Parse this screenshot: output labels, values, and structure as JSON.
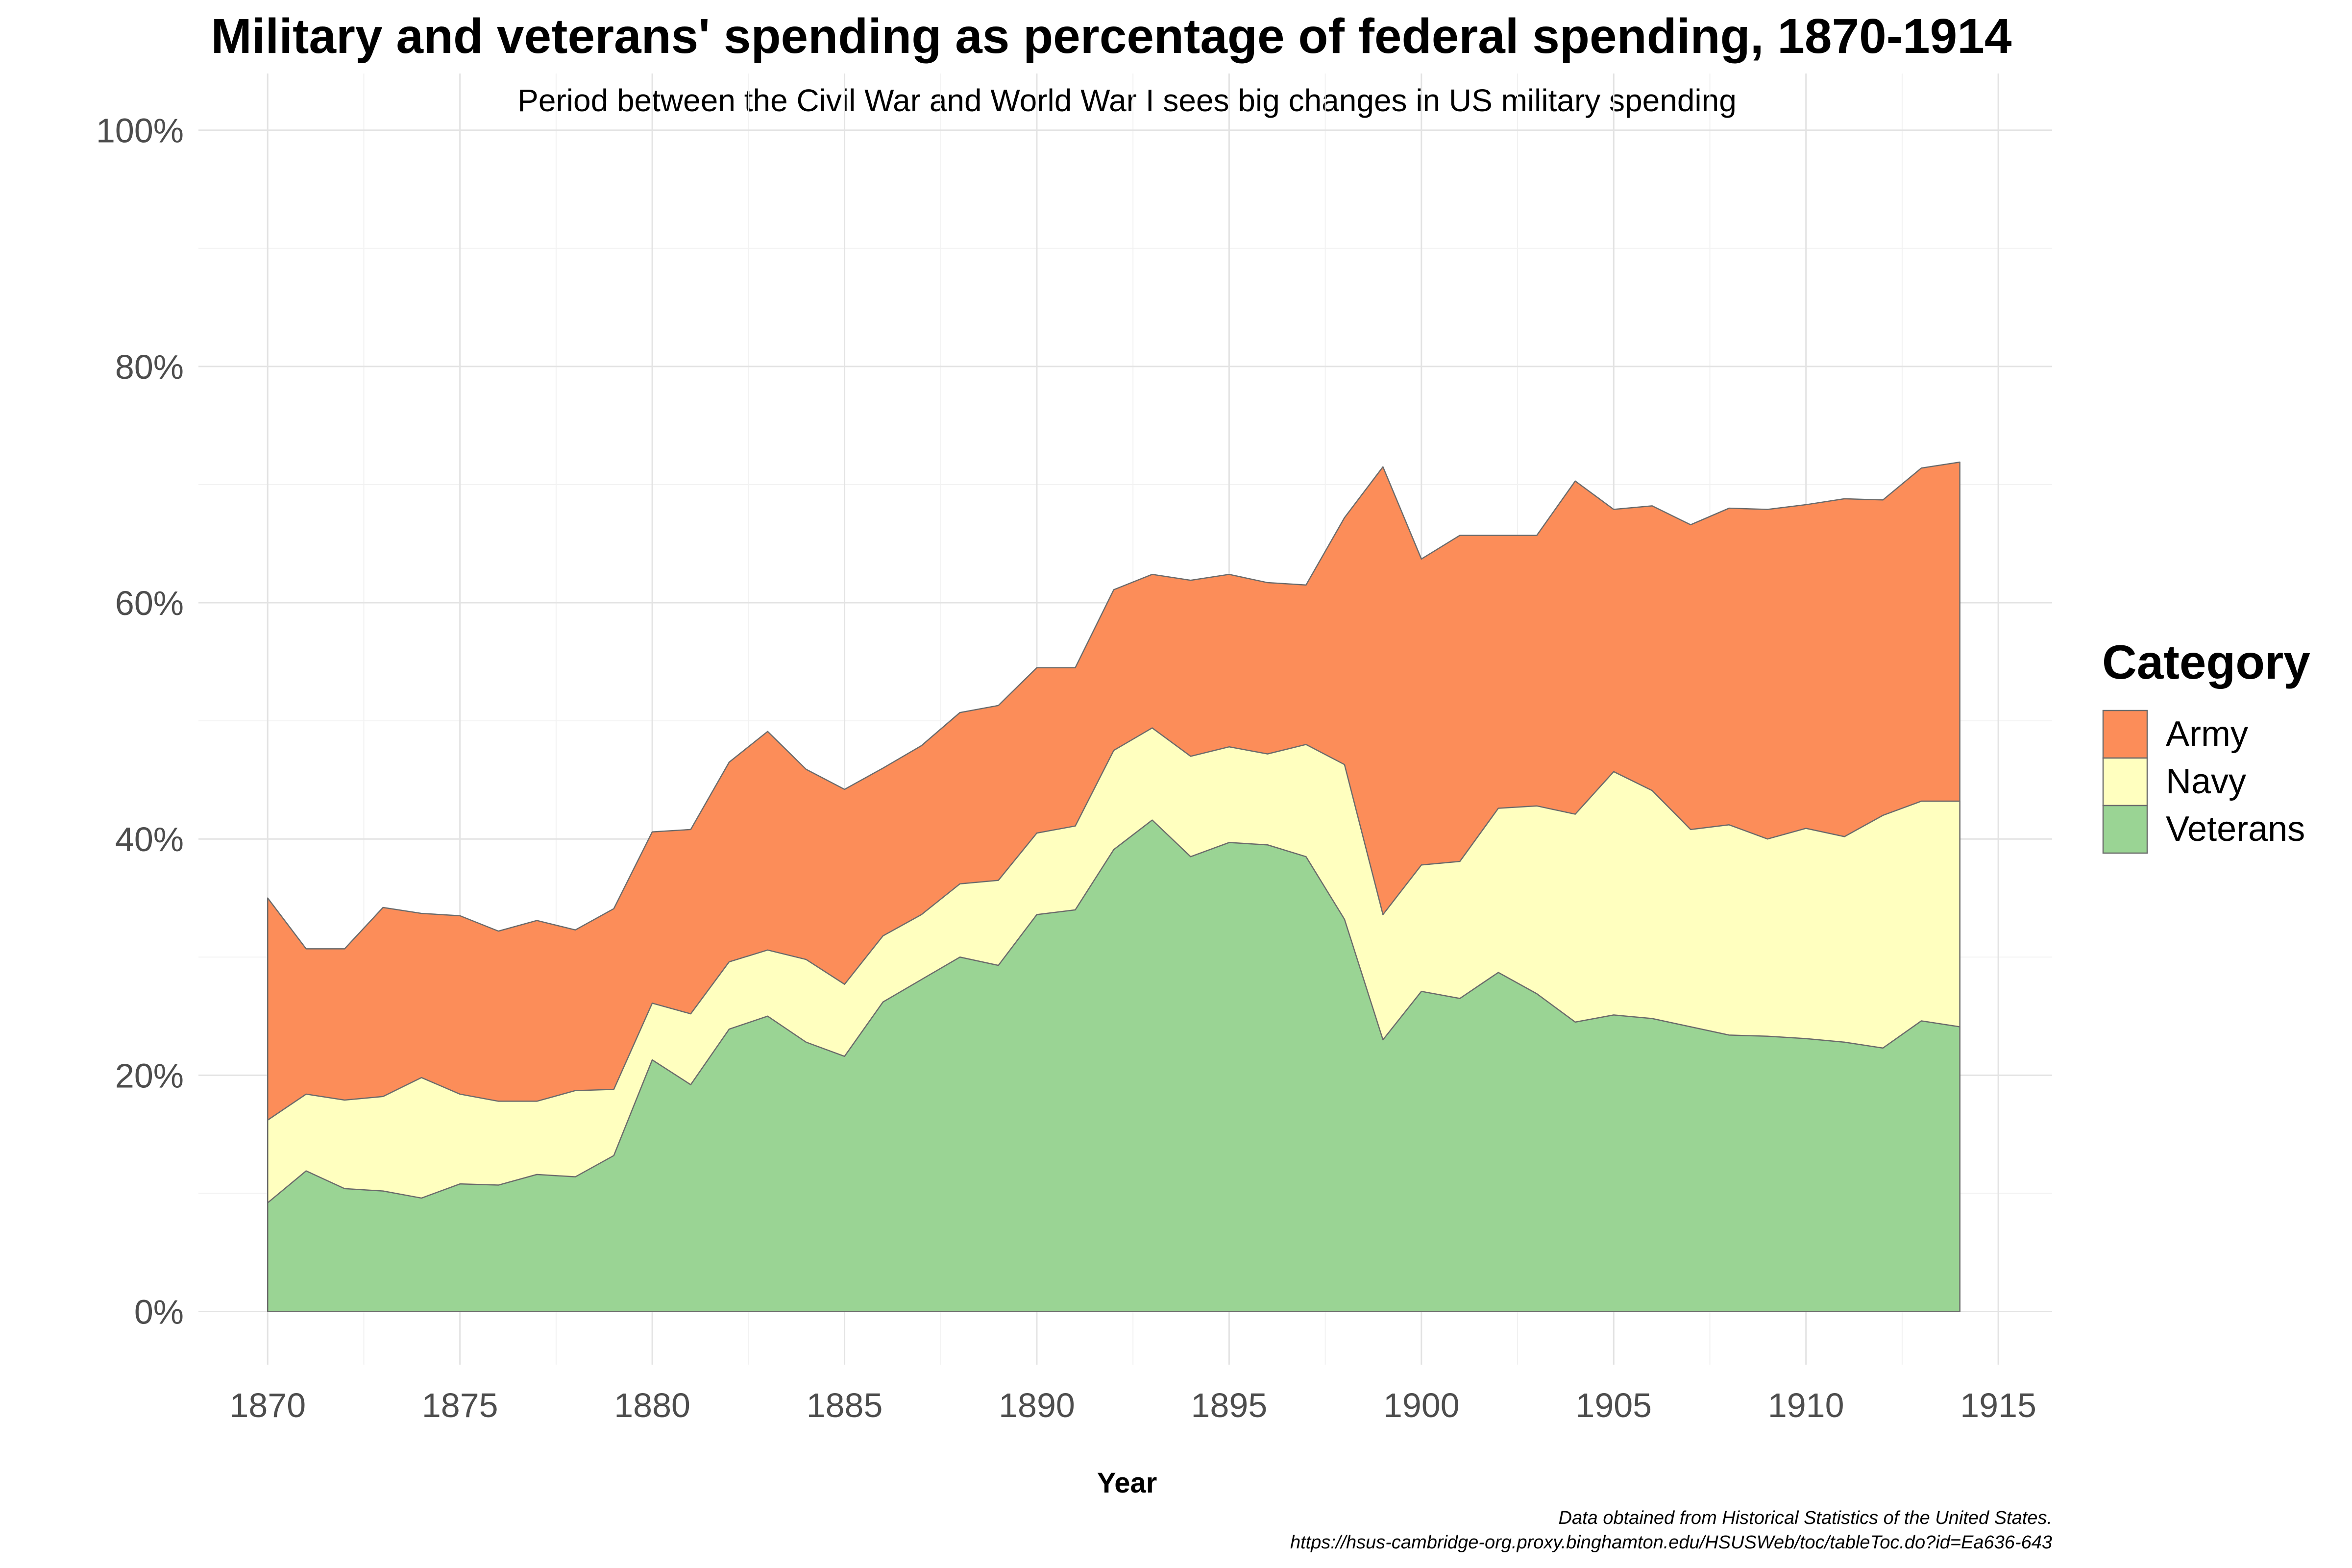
{
  "chart_data": {
    "type": "area",
    "stacked": true,
    "title": "Military and veterans' spending as percentage of federal spending, 1870-1914",
    "subtitle": "Period between the Civil War and World War I sees big changes in US military spending",
    "xlabel": "Year",
    "ylabel": "",
    "xlim": [
      1868.2,
      1916.4
    ],
    "ylim": [
      -4.5,
      104.8
    ],
    "x_ticks": [
      1870,
      1875,
      1880,
      1885,
      1890,
      1895,
      1900,
      1905,
      1910,
      1915
    ],
    "x_tick_labels": [
      "1870",
      "1875",
      "1880",
      "1885",
      "1890",
      "1895",
      "1900",
      "1905",
      "1910",
      "1915"
    ],
    "y_ticks": [
      0,
      20,
      40,
      60,
      80,
      100
    ],
    "y_tick_labels": [
      "0%",
      "20%",
      "40%",
      "60%",
      "80%",
      "100%"
    ],
    "grid": true,
    "legend": {
      "title": "Category",
      "position": "right"
    },
    "caption": [
      "Data obtained from Historical Statistics of the United States.",
      "https://hsus-cambridge-org.proxy.binghamton.edu/HSUSWeb/toc/tableToc.do?id=Ea636-643"
    ],
    "x": [
      1870,
      1871,
      1872,
      1873,
      1874,
      1875,
      1876,
      1877,
      1878,
      1879,
      1880,
      1881,
      1882,
      1883,
      1884,
      1885,
      1886,
      1887,
      1888,
      1889,
      1890,
      1891,
      1892,
      1893,
      1894,
      1895,
      1896,
      1897,
      1898,
      1899,
      1900,
      1901,
      1902,
      1903,
      1904,
      1905,
      1906,
      1907,
      1908,
      1909,
      1910,
      1911,
      1912,
      1913,
      1914
    ],
    "series": [
      {
        "name": "Veterans",
        "color": "#9ad494",
        "values": [
          9.2,
          11.9,
          10.4,
          10.2,
          9.6,
          10.8,
          10.7,
          11.6,
          11.4,
          13.2,
          21.3,
          19.2,
          23.9,
          25.0,
          22.8,
          21.6,
          26.2,
          28.1,
          30.0,
          29.3,
          33.6,
          34.0,
          39.1,
          41.6,
          38.5,
          39.7,
          39.5,
          38.5,
          33.2,
          23.0,
          27.1,
          26.5,
          28.7,
          26.9,
          24.5,
          25.1,
          24.8,
          24.1,
          23.4,
          23.3,
          23.1,
          22.8,
          22.3,
          24.6,
          24.1
        ]
      },
      {
        "name": "Navy",
        "color": "#ffffbf",
        "values": [
          7.0,
          6.5,
          7.5,
          8.0,
          10.2,
          7.6,
          7.1,
          6.2,
          7.3,
          5.6,
          4.8,
          6.0,
          5.7,
          5.6,
          7.0,
          6.1,
          5.6,
          5.5,
          6.2,
          7.2,
          6.9,
          7.1,
          8.4,
          7.8,
          8.5,
          8.1,
          7.7,
          9.5,
          13.1,
          10.6,
          10.7,
          11.6,
          13.9,
          15.9,
          17.6,
          20.6,
          19.3,
          16.7,
          17.8,
          16.7,
          17.8,
          17.4,
          19.7,
          18.6,
          19.1
        ]
      },
      {
        "name": "Army",
        "color": "#fc8d59",
        "values": [
          18.8,
          12.3,
          12.8,
          16.0,
          13.9,
          15.1,
          14.4,
          15.3,
          13.6,
          15.3,
          14.5,
          15.6,
          16.9,
          18.5,
          16.1,
          16.5,
          14.2,
          14.3,
          14.5,
          14.8,
          14.0,
          13.4,
          13.6,
          13.0,
          14.9,
          14.6,
          14.5,
          13.5,
          20.9,
          37.9,
          25.9,
          27.6,
          23.1,
          22.9,
          28.2,
          22.2,
          24.1,
          25.8,
          26.8,
          27.9,
          27.4,
          28.6,
          26.7,
          28.2,
          28.7
        ]
      }
    ]
  }
}
